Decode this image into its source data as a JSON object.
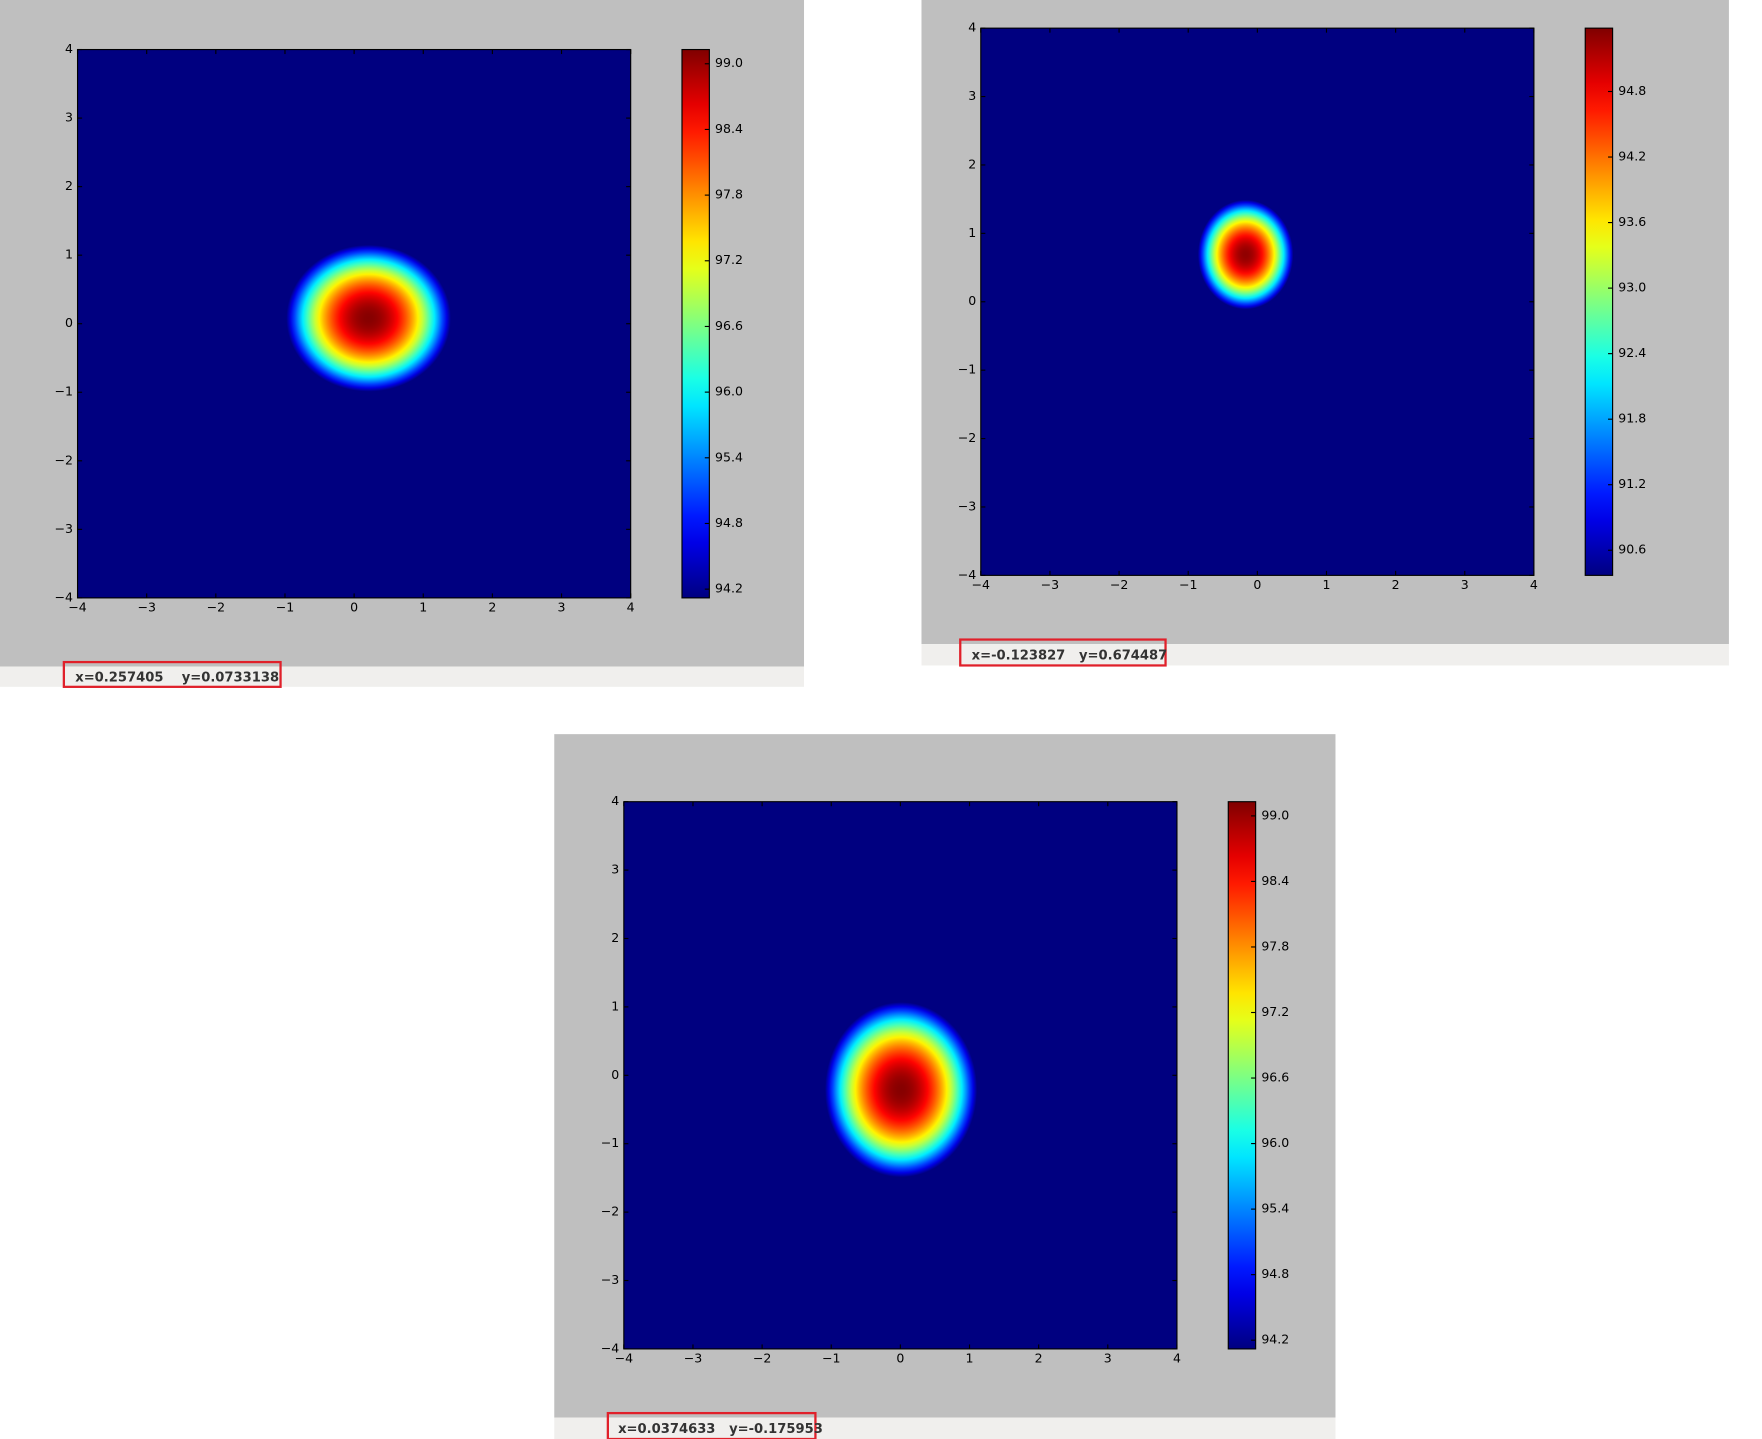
{
  "chart_data": [
    {
      "type": "heatmap",
      "xlim": [
        -4,
        4
      ],
      "ylim": [
        -4,
        4
      ],
      "xticks": [
        {
          "value": -4,
          "label": "−4"
        },
        {
          "value": -3,
          "label": "−3"
        },
        {
          "value": -2,
          "label": "−2"
        },
        {
          "value": -1,
          "label": "−1"
        },
        0,
        1,
        2,
        3,
        4
      ],
      "yticks": [
        {
          "value": -4,
          "label": "−4"
        },
        {
          "value": -3,
          "label": "−3"
        },
        {
          "value": -2,
          "label": "−2"
        },
        {
          "value": -1,
          "label": "−1"
        },
        0,
        1,
        2,
        3,
        4
      ],
      "center": [
        0.21,
        0.08
      ],
      "radius": [
        1.19,
        1.07
      ],
      "peak": 99.1,
      "clim": [
        94.12,
        99.13
      ],
      "cticks": [
        94.2,
        94.8,
        95.4,
        {
          "value": 96,
          "label": "96.0"
        },
        96.6,
        97.2,
        97.8,
        98.4,
        {
          "value": 99,
          "label": "99.0"
        }
      ],
      "status": "x=0.257405    y=0.0733138"
    },
    {
      "type": "heatmap",
      "xlim": [
        -4,
        4
      ],
      "ylim": [
        -4,
        4
      ],
      "xticks": [
        {
          "value": -4,
          "label": "−4"
        },
        {
          "value": -3,
          "label": "−3"
        },
        {
          "value": -2,
          "label": "−2"
        },
        {
          "value": -1,
          "label": "−1"
        },
        0,
        1,
        2,
        3,
        4
      ],
      "yticks": [
        {
          "value": -4,
          "label": "−4"
        },
        {
          "value": -3,
          "label": "−3"
        },
        {
          "value": -2,
          "label": "−2"
        },
        {
          "value": -1,
          "label": "−1"
        },
        0,
        1,
        2,
        3,
        4
      ],
      "center": [
        -0.17,
        0.69
      ],
      "radius": [
        0.69,
        0.8
      ],
      "peak": 95.3,
      "clim": [
        90.37,
        95.38
      ],
      "cticks": [
        90.6,
        91.2,
        91.8,
        92.4,
        {
          "value": 93,
          "label": "93.0"
        },
        93.6,
        94.2,
        94.8
      ],
      "status": "x=-0.123827   y=0.674487"
    },
    {
      "type": "heatmap",
      "xlim": [
        -4,
        4
      ],
      "ylim": [
        -4,
        4
      ],
      "xticks": [
        {
          "value": -4,
          "label": "−4"
        },
        {
          "value": -3,
          "label": "−3"
        },
        {
          "value": -2,
          "label": "−2"
        },
        {
          "value": -1,
          "label": "−1"
        },
        0,
        1,
        2,
        3,
        4
      ],
      "yticks": [
        {
          "value": -4,
          "label": "−4"
        },
        {
          "value": -3,
          "label": "−3"
        },
        {
          "value": -2,
          "label": "−2"
        },
        {
          "value": -1,
          "label": "−1"
        },
        0,
        1,
        2,
        3,
        4
      ],
      "center": [
        0.01,
        -0.21
      ],
      "radius": [
        1.1,
        1.28
      ],
      "peak": 99.1,
      "clim": [
        94.12,
        99.13
      ],
      "cticks": [
        94.2,
        94.8,
        95.4,
        {
          "value": 96,
          "label": "96.0"
        },
        96.6,
        97.2,
        97.8,
        98.4,
        {
          "value": 99,
          "label": "99.0"
        }
      ],
      "status": "x=0.0374633   y=-0.175953"
    }
  ]
}
